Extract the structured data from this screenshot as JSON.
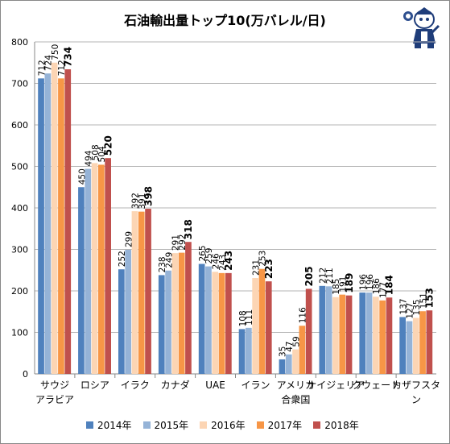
{
  "chart_data": {
    "type": "bar",
    "title": "石油輸出量トップ10(万バレル/日)",
    "categories": [
      [
        "サウジ",
        "アラビア"
      ],
      [
        "ロシア"
      ],
      [
        "イラク"
      ],
      [
        "カナダ"
      ],
      [
        "UAE"
      ],
      [
        "イラン"
      ],
      [
        "アメリカ",
        "合衆国"
      ],
      [
        "ナイジェリア"
      ],
      [
        "クウェート"
      ],
      [
        "カザフスタ",
        "ン"
      ]
    ],
    "series": [
      {
        "name": "2014年",
        "color": "#4f81bd",
        "values": [
          712,
          450,
          252,
          238,
          265,
          108,
          35,
          212,
          196,
          137
        ]
      },
      {
        "name": "2015年",
        "color": "#95b3d7",
        "values": [
          724,
          494,
          299,
          249,
          259,
          111,
          47,
          211,
          196,
          127
        ]
      },
      {
        "name": "2016年",
        "color": "#fcd5b4",
        "values": [
          750,
          508,
          392,
          291,
          246,
          231,
          59,
          185,
          186,
          135
        ]
      },
      {
        "name": "2017年",
        "color": "#f79646",
        "values": [
          712,
          504,
          391,
          292,
          243,
          253,
          116,
          191,
          177,
          151
        ]
      },
      {
        "name": "2018年",
        "color": "#c0504d",
        "values": [
          734,
          520,
          398,
          318,
          243,
          223,
          205,
          189,
          184,
          153
        ]
      }
    ],
    "ylim": [
      0,
      800
    ],
    "yticks": [
      0,
      100,
      200,
      300,
      400,
      500,
      600,
      700,
      800
    ],
    "grid": true,
    "legend_position": "bottom",
    "bold_series_labels": "2018年"
  }
}
